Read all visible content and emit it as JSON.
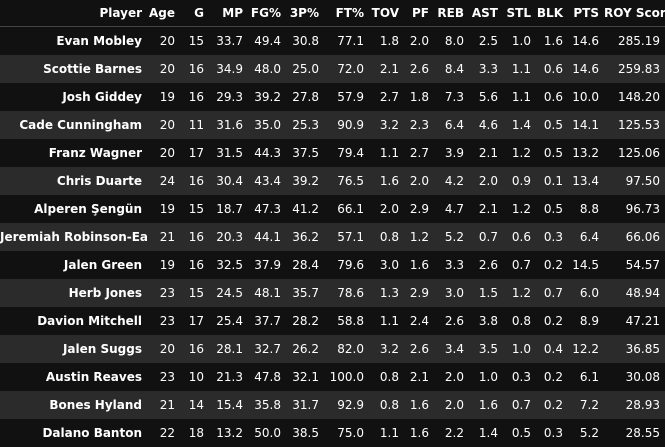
{
  "table": {
    "columns": [
      "Player",
      "Age",
      "G",
      "MP",
      "FG%",
      "3P%",
      "FT%",
      "TOV",
      "PF",
      "REB",
      "AST",
      "STL",
      "BLK",
      "PTS",
      "ROY Score"
    ],
    "rows": [
      [
        "Evan Mobley",
        "20",
        "15",
        "33.7",
        "49.4",
        "30.8",
        "77.1",
        "1.8",
        "2.0",
        "8.0",
        "2.5",
        "1.0",
        "1.6",
        "14.6",
        "285.19"
      ],
      [
        "Scottie Barnes",
        "20",
        "16",
        "34.9",
        "48.0",
        "25.0",
        "72.0",
        "2.1",
        "2.6",
        "8.4",
        "3.3",
        "1.1",
        "0.6",
        "14.6",
        "259.83"
      ],
      [
        "Josh Giddey",
        "19",
        "16",
        "29.3",
        "39.2",
        "27.8",
        "57.9",
        "2.7",
        "1.8",
        "7.3",
        "5.6",
        "1.1",
        "0.6",
        "10.0",
        "148.20"
      ],
      [
        "Cade Cunningham",
        "20",
        "11",
        "31.6",
        "35.0",
        "25.3",
        "90.9",
        "3.2",
        "2.3",
        "6.4",
        "4.6",
        "1.4",
        "0.5",
        "14.1",
        "125.53"
      ],
      [
        "Franz Wagner",
        "20",
        "17",
        "31.5",
        "44.3",
        "37.5",
        "79.4",
        "1.1",
        "2.7",
        "3.9",
        "2.1",
        "1.2",
        "0.5",
        "13.2",
        "125.06"
      ],
      [
        "Chris Duarte",
        "24",
        "16",
        "30.4",
        "43.4",
        "39.2",
        "76.5",
        "1.6",
        "2.0",
        "4.2",
        "2.0",
        "0.9",
        "0.1",
        "13.4",
        "97.50"
      ],
      [
        "Alperen Şengün",
        "19",
        "15",
        "18.7",
        "47.3",
        "41.2",
        "66.1",
        "2.0",
        "2.9",
        "4.7",
        "2.1",
        "1.2",
        "0.5",
        "8.8",
        "96.73"
      ],
      [
        "Jeremiah Robinson-Earl",
        "21",
        "16",
        "20.3",
        "44.1",
        "36.2",
        "57.1",
        "0.8",
        "1.2",
        "5.2",
        "0.7",
        "0.6",
        "0.3",
        "6.4",
        "66.06"
      ],
      [
        "Jalen Green",
        "19",
        "16",
        "32.5",
        "37.9",
        "28.4",
        "79.6",
        "3.0",
        "1.6",
        "3.3",
        "2.6",
        "0.7",
        "0.2",
        "14.5",
        "54.57"
      ],
      [
        "Herb Jones",
        "23",
        "15",
        "24.5",
        "48.1",
        "35.7",
        "78.6",
        "1.3",
        "2.9",
        "3.0",
        "1.5",
        "1.2",
        "0.7",
        "6.0",
        "48.94"
      ],
      [
        "Davion Mitchell",
        "23",
        "17",
        "25.4",
        "37.7",
        "28.2",
        "58.8",
        "1.1",
        "2.4",
        "2.6",
        "3.8",
        "0.8",
        "0.2",
        "8.9",
        "47.21"
      ],
      [
        "Jalen Suggs",
        "20",
        "16",
        "28.1",
        "32.7",
        "26.2",
        "82.0",
        "3.2",
        "2.6",
        "3.4",
        "3.5",
        "1.0",
        "0.4",
        "12.2",
        "36.85"
      ],
      [
        "Austin Reaves",
        "23",
        "10",
        "21.3",
        "47.8",
        "32.1",
        "100.0",
        "0.8",
        "2.1",
        "2.0",
        "1.0",
        "0.3",
        "0.2",
        "6.1",
        "30.08"
      ],
      [
        "Bones Hyland",
        "21",
        "14",
        "15.4",
        "35.8",
        "31.7",
        "92.9",
        "0.8",
        "1.6",
        "2.0",
        "1.6",
        "0.7",
        "0.2",
        "7.2",
        "28.93"
      ],
      [
        "Dalano Banton",
        "22",
        "18",
        "13.2",
        "50.0",
        "38.5",
        "75.0",
        "1.1",
        "1.6",
        "2.2",
        "1.4",
        "0.5",
        "0.3",
        "5.2",
        "28.55"
      ]
    ]
  },
  "colors": {
    "background": "#111111",
    "row_alt": "#2b2b2b",
    "text": "#ffffff"
  }
}
